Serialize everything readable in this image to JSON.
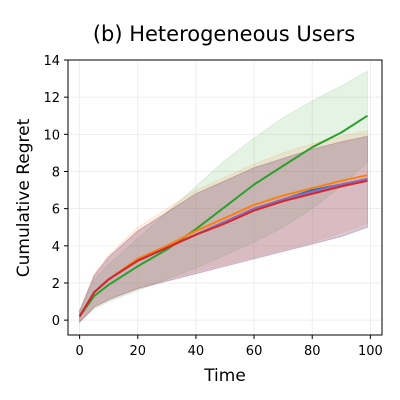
{
  "chart_data": {
    "type": "line",
    "title": "(b) Heterogeneous Users",
    "xlabel": "Time",
    "ylabel": "Cumulative Regret",
    "xlim": [
      -4,
      104
    ],
    "ylim": [
      -0.8,
      14
    ],
    "xticks": [
      0,
      20,
      40,
      60,
      80,
      100
    ],
    "yticks": [
      0,
      2,
      4,
      6,
      8,
      10,
      12,
      14
    ],
    "grid": true,
    "legend": "none",
    "x": [
      0,
      5,
      10,
      20,
      30,
      40,
      50,
      60,
      70,
      80,
      90,
      99
    ],
    "series": [
      {
        "color": "#2ca02c",
        "values": [
          0.2,
          1.3,
          1.9,
          2.9,
          3.8,
          4.9,
          6.1,
          7.3,
          8.3,
          9.3,
          10.1,
          11.0
        ],
        "lower": [
          -0.1,
          0.6,
          1.0,
          1.6,
          2.2,
          2.8,
          3.5,
          4.2,
          5.0,
          6.0,
          7.2,
          8.5
        ],
        "upper": [
          0.5,
          2.2,
          3.0,
          4.4,
          5.8,
          7.2,
          8.6,
          9.8,
          10.9,
          11.8,
          12.6,
          13.4
        ]
      },
      {
        "color": "#ff7f0e",
        "values": [
          0.2,
          1.5,
          2.2,
          3.3,
          4.0,
          4.8,
          5.5,
          6.2,
          6.7,
          7.1,
          7.5,
          7.8
        ],
        "lower": [
          -0.1,
          0.7,
          1.1,
          1.7,
          2.2,
          2.6,
          3.0,
          3.4,
          3.8,
          4.2,
          4.7,
          5.2
        ],
        "upper": [
          0.5,
          2.5,
          3.5,
          5.0,
          6.0,
          7.0,
          7.7,
          8.4,
          9.0,
          9.5,
          9.9,
          10.2
        ]
      },
      {
        "color": "#1f77b4",
        "values": [
          0.2,
          1.5,
          2.2,
          3.2,
          3.9,
          4.6,
          5.3,
          6.0,
          6.5,
          7.0,
          7.3,
          7.6
        ],
        "lower": [
          -0.1,
          0.7,
          1.1,
          1.7,
          2.1,
          2.5,
          2.9,
          3.3,
          3.7,
          4.1,
          4.5,
          5.0
        ],
        "upper": [
          0.5,
          2.4,
          3.4,
          4.8,
          5.8,
          6.8,
          7.5,
          8.2,
          8.7,
          9.2,
          9.6,
          9.9
        ]
      },
      {
        "color": "#9467bd",
        "values": [
          0.2,
          1.5,
          2.2,
          3.2,
          3.9,
          4.6,
          5.3,
          6.0,
          6.5,
          6.9,
          7.3,
          7.6
        ],
        "lower": [
          -0.1,
          0.7,
          1.1,
          1.7,
          2.1,
          2.5,
          2.9,
          3.3,
          3.7,
          4.1,
          4.5,
          5.0
        ],
        "upper": [
          0.5,
          2.4,
          3.4,
          4.8,
          5.8,
          6.8,
          7.5,
          8.2,
          8.7,
          9.2,
          9.6,
          9.9
        ]
      },
      {
        "color": "#d62728",
        "values": [
          0.2,
          1.5,
          2.2,
          3.2,
          3.9,
          4.6,
          5.2,
          5.9,
          6.4,
          6.8,
          7.2,
          7.5
        ],
        "lower": [
          -0.1,
          0.7,
          1.1,
          1.7,
          2.1,
          2.5,
          2.9,
          3.3,
          3.7,
          4.1,
          4.5,
          5.0
        ],
        "upper": [
          0.5,
          2.4,
          3.4,
          4.8,
          5.8,
          6.8,
          7.5,
          8.2,
          8.7,
          9.2,
          9.6,
          9.9
        ]
      }
    ]
  }
}
